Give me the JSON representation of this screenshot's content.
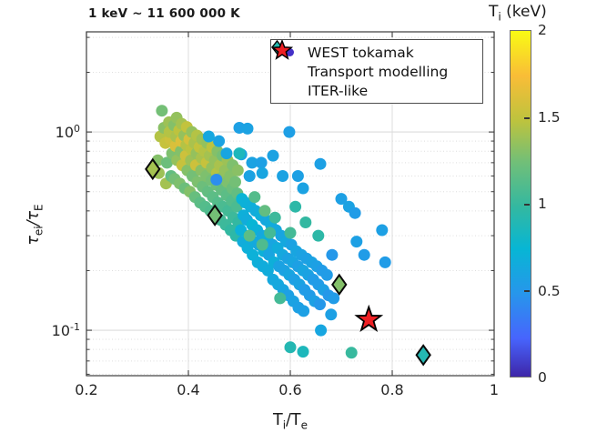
{
  "annotation": "1 keV ~ 11 600 000 K",
  "legend": {
    "items": [
      {
        "marker": "dot",
        "label": "WEST tokamak",
        "color": "#4430c8"
      },
      {
        "marker": "diamond",
        "label": "Transport modelling",
        "color": "#22b6ac"
      },
      {
        "marker": "star",
        "label": "ITER-like",
        "color": "#ee2024"
      }
    ]
  },
  "chart_data": {
    "type": "scatter",
    "xlabel": "T_i/T_e",
    "ylabel": "tau_ei/tau_E",
    "xlabel_parts": {
      "t1": "T",
      "s1": "i",
      "t2": "/T",
      "s2": "e"
    },
    "ylabel_parts": {
      "t1": "τ",
      "s1": "ei",
      "t2": "/τ",
      "s2": "E"
    },
    "xlim": [
      0.2,
      1.0
    ],
    "ylim": [
      0.059,
      3.2
    ],
    "yscale": "log",
    "grid": true,
    "xticks": [
      0.2,
      0.4,
      0.6,
      0.8,
      1
    ],
    "xtick_labels": [
      "0.2",
      "0.4",
      "0.6",
      "0.8",
      "1"
    ],
    "ytick_values": [
      1,
      0.1
    ],
    "ytick_labels": [
      {
        "base": "10",
        "exp": "0"
      },
      {
        "base": "10",
        "exp": "-1"
      }
    ],
    "colorbar": {
      "title_parts": {
        "pre": "T",
        "sub": "i",
        "post": " (keV)"
      },
      "min": 0,
      "max": 2,
      "ticks": [
        2,
        1.5,
        1,
        0.5,
        0
      ],
      "tick_labels": [
        "2",
        "1.5",
        "1",
        "0.5",
        "0"
      ],
      "stops": [
        [
          0,
          "#3e26a8"
        ],
        [
          0.11,
          "#4764fd"
        ],
        [
          0.24,
          "#2796eb"
        ],
        [
          0.37,
          "#07b6d4"
        ],
        [
          0.49,
          "#33b8a1"
        ],
        [
          0.62,
          "#71bf78"
        ],
        [
          0.74,
          "#bdc33e"
        ],
        [
          0.87,
          "#f9bd37"
        ],
        [
          1,
          "#f9fb14"
        ]
      ]
    },
    "series": [
      {
        "name": "WEST tokamak",
        "marker": "dot",
        "value_key": "Ti_keV",
        "points": [
          [
            0.34,
            0.72,
            1.3
          ],
          [
            0.345,
            0.95,
            1.45
          ],
          [
            0.348,
            1.28,
            1.25
          ],
          [
            0.342,
            0.62,
            1.38
          ],
          [
            0.355,
            0.88,
            1.52
          ],
          [
            0.352,
            1.05,
            1.32
          ],
          [
            0.358,
            0.7,
            1.22
          ],
          [
            0.356,
            0.55,
            1.4
          ],
          [
            0.362,
            1.12,
            1.38
          ],
          [
            0.365,
            0.92,
            1.55
          ],
          [
            0.368,
            0.78,
            1.28
          ],
          [
            0.366,
            0.6,
            1.18
          ],
          [
            0.363,
            1.0,
            1.45
          ],
          [
            0.372,
            1.08,
            1.3
          ],
          [
            0.375,
            0.85,
            1.6
          ],
          [
            0.378,
            0.72,
            1.35
          ],
          [
            0.376,
            0.95,
            1.42
          ],
          [
            0.373,
            0.58,
            1.25
          ],
          [
            0.377,
            1.18,
            1.35
          ],
          [
            0.382,
            1.02,
            1.48
          ],
          [
            0.385,
            0.8,
            1.3
          ],
          [
            0.388,
            0.68,
            1.52
          ],
          [
            0.386,
            0.9,
            1.62
          ],
          [
            0.383,
            0.55,
            1.28
          ],
          [
            0.387,
            1.1,
            1.4
          ],
          [
            0.392,
            0.96,
            1.35
          ],
          [
            0.395,
            0.76,
            1.55
          ],
          [
            0.398,
            0.64,
            1.3
          ],
          [
            0.396,
            0.86,
            1.45
          ],
          [
            0.393,
            0.52,
            1.22
          ],
          [
            0.397,
            1.06,
            1.5
          ],
          [
            0.402,
            0.92,
            1.58
          ],
          [
            0.405,
            0.72,
            1.38
          ],
          [
            0.408,
            0.6,
            1.25
          ],
          [
            0.406,
            0.82,
            1.48
          ],
          [
            0.403,
            0.5,
            1.3
          ],
          [
            0.407,
            1.0,
            1.35
          ],
          [
            0.412,
            0.88,
            1.42
          ],
          [
            0.415,
            0.68,
            1.55
          ],
          [
            0.418,
            0.56,
            1.28
          ],
          [
            0.416,
            0.78,
            1.35
          ],
          [
            0.413,
            0.47,
            1.2
          ],
          [
            0.417,
            0.96,
            1.45
          ],
          [
            0.422,
            0.84,
            1.5
          ],
          [
            0.425,
            0.64,
            1.32
          ],
          [
            0.428,
            0.53,
            1.22
          ],
          [
            0.426,
            0.74,
            1.42
          ],
          [
            0.423,
            0.44,
            1.15
          ],
          [
            0.427,
            0.92,
            1.38
          ],
          [
            0.432,
            0.8,
            1.45
          ],
          [
            0.435,
            0.6,
            1.28
          ],
          [
            0.438,
            0.5,
            1.18
          ],
          [
            0.436,
            0.7,
            1.52
          ],
          [
            0.433,
            0.42,
            1.12
          ],
          [
            0.437,
            0.88,
            1.35
          ],
          [
            0.442,
            0.76,
            1.4
          ],
          [
            0.445,
            0.57,
            1.25
          ],
          [
            0.448,
            0.47,
            1.15
          ],
          [
            0.446,
            0.66,
            1.35
          ],
          [
            0.443,
            0.4,
            1.1
          ],
          [
            0.447,
            0.84,
            1.48
          ],
          [
            0.452,
            0.72,
            1.35
          ],
          [
            0.455,
            0.54,
            1.22
          ],
          [
            0.458,
            0.44,
            1.12
          ],
          [
            0.456,
            0.62,
            1.45
          ],
          [
            0.453,
            0.38,
            1.08
          ],
          [
            0.457,
            0.8,
            1.3
          ],
          [
            0.462,
            0.68,
            1.42
          ],
          [
            0.465,
            0.51,
            1.18
          ],
          [
            0.468,
            0.42,
            1.08
          ],
          [
            0.466,
            0.59,
            1.32
          ],
          [
            0.463,
            0.36,
            1.05
          ],
          [
            0.467,
            0.76,
            1.25
          ],
          [
            0.472,
            0.64,
            1.35
          ],
          [
            0.475,
            0.48,
            1.15
          ],
          [
            0.478,
            0.4,
            1.05
          ],
          [
            0.476,
            0.56,
            1.28
          ],
          [
            0.473,
            0.34,
            1.02
          ],
          [
            0.477,
            0.72,
            1.38
          ],
          [
            0.482,
            0.6,
            1.3
          ],
          [
            0.485,
            0.45,
            1.12
          ],
          [
            0.488,
            0.37,
            1.02
          ],
          [
            0.486,
            0.52,
            1.22
          ],
          [
            0.483,
            0.32,
            0.98
          ],
          [
            0.487,
            0.68,
            1.28
          ],
          [
            0.492,
            0.56,
            1.25
          ],
          [
            0.495,
            0.42,
            1.08
          ],
          [
            0.498,
            0.35,
            0.98
          ],
          [
            0.496,
            0.49,
            1.18
          ],
          [
            0.493,
            0.3,
            0.95
          ],
          [
            0.497,
            0.64,
            1.32
          ],
          [
            0.455,
            0.575,
            0.44
          ],
          [
            0.46,
            0.9,
            0.58
          ],
          [
            0.5,
            1.05,
            0.56
          ],
          [
            0.516,
            1.04,
            0.58
          ],
          [
            0.598,
            1.0,
            0.55
          ],
          [
            0.475,
            0.78,
            0.6
          ],
          [
            0.44,
            0.95,
            0.62
          ],
          [
            0.504,
            0.77,
            0.6
          ],
          [
            0.5,
            0.78,
            0.86
          ],
          [
            0.525,
            0.7,
            0.58
          ],
          [
            0.543,
            0.7,
            0.56
          ],
          [
            0.566,
            0.76,
            0.58
          ],
          [
            0.659,
            0.69,
            0.56
          ],
          [
            0.52,
            0.6,
            0.58
          ],
          [
            0.545,
            0.62,
            0.6
          ],
          [
            0.585,
            0.6,
            0.58
          ],
          [
            0.615,
            0.6,
            0.56
          ],
          [
            0.625,
            0.52,
            0.58
          ],
          [
            0.505,
            0.46,
            0.73
          ],
          [
            0.508,
            0.38,
            0.68
          ],
          [
            0.503,
            0.32,
            0.7
          ],
          [
            0.507,
            0.28,
            0.66
          ],
          [
            0.512,
            0.44,
            0.7
          ],
          [
            0.515,
            0.36,
            0.66
          ],
          [
            0.518,
            0.3,
            0.73
          ],
          [
            0.516,
            0.26,
            0.68
          ],
          [
            0.522,
            0.42,
            0.68
          ],
          [
            0.525,
            0.34,
            0.73
          ],
          [
            0.528,
            0.28,
            0.66
          ],
          [
            0.526,
            0.24,
            0.7
          ],
          [
            0.532,
            0.4,
            0.66
          ],
          [
            0.535,
            0.32,
            0.7
          ],
          [
            0.538,
            0.27,
            0.63
          ],
          [
            0.536,
            0.22,
            0.68
          ],
          [
            0.542,
            0.38,
            0.68
          ],
          [
            0.545,
            0.3,
            0.63
          ],
          [
            0.548,
            0.25,
            0.7
          ],
          [
            0.546,
            0.21,
            0.66
          ],
          [
            0.552,
            0.36,
            0.63
          ],
          [
            0.555,
            0.29,
            0.68
          ],
          [
            0.558,
            0.24,
            0.6
          ],
          [
            0.556,
            0.2,
            0.66
          ],
          [
            0.562,
            0.34,
            0.66
          ],
          [
            0.565,
            0.27,
            0.6
          ],
          [
            0.568,
            0.22,
            0.68
          ],
          [
            0.566,
            0.18,
            0.63
          ],
          [
            0.572,
            0.32,
            0.63
          ],
          [
            0.575,
            0.26,
            0.66
          ],
          [
            0.578,
            0.21,
            0.58
          ],
          [
            0.576,
            0.17,
            0.63
          ],
          [
            0.582,
            0.3,
            0.6
          ],
          [
            0.585,
            0.24,
            0.63
          ],
          [
            0.588,
            0.2,
            0.58
          ],
          [
            0.586,
            0.16,
            0.6
          ],
          [
            0.592,
            0.28,
            0.63
          ],
          [
            0.595,
            0.23,
            0.58
          ],
          [
            0.598,
            0.19,
            0.6
          ],
          [
            0.596,
            0.15,
            0.56
          ],
          [
            0.602,
            0.27,
            0.58
          ],
          [
            0.605,
            0.22,
            0.6
          ],
          [
            0.608,
            0.18,
            0.56
          ],
          [
            0.606,
            0.14,
            0.58
          ],
          [
            0.612,
            0.25,
            0.6
          ],
          [
            0.615,
            0.21,
            0.56
          ],
          [
            0.618,
            0.17,
            0.58
          ],
          [
            0.616,
            0.13,
            0.56
          ],
          [
            0.622,
            0.24,
            0.58
          ],
          [
            0.625,
            0.2,
            0.6
          ],
          [
            0.628,
            0.16,
            0.53
          ],
          [
            0.626,
            0.125,
            0.56
          ],
          [
            0.632,
            0.23,
            0.56
          ],
          [
            0.635,
            0.19,
            0.58
          ],
          [
            0.638,
            0.15,
            0.53
          ],
          [
            0.642,
            0.22,
            0.58
          ],
          [
            0.645,
            0.18,
            0.53
          ],
          [
            0.648,
            0.14,
            0.56
          ],
          [
            0.652,
            0.21,
            0.56
          ],
          [
            0.655,
            0.17,
            0.53
          ],
          [
            0.658,
            0.135,
            0.5
          ],
          [
            0.662,
            0.2,
            0.53
          ],
          [
            0.665,
            0.16,
            0.56
          ],
          [
            0.672,
            0.19,
            0.53
          ],
          [
            0.675,
            0.15,
            0.5
          ],
          [
            0.682,
            0.24,
            0.5
          ],
          [
            0.685,
            0.145,
            0.53
          ],
          [
            0.52,
            0.3,
            1.15
          ],
          [
            0.545,
            0.27,
            1.1
          ],
          [
            0.56,
            0.31,
            1.05
          ],
          [
            0.58,
            0.145,
            1.05
          ],
          [
            0.55,
            0.4,
            1.18
          ],
          [
            0.53,
            0.47,
            1.12
          ],
          [
            0.57,
            0.37,
            1.02
          ],
          [
            0.6,
            0.31,
            1.05
          ],
          [
            0.61,
            0.42,
            0.95
          ],
          [
            0.63,
            0.35,
            0.98
          ],
          [
            0.655,
            0.3,
            0.95
          ],
          [
            0.6,
            0.082,
            0.9
          ],
          [
            0.625,
            0.078,
            0.86
          ],
          [
            0.72,
            0.077,
            1.0
          ],
          [
            0.66,
            0.1,
            0.61
          ],
          [
            0.68,
            0.12,
            0.56
          ],
          [
            0.7,
            0.46,
            0.56
          ],
          [
            0.715,
            0.42,
            0.58
          ],
          [
            0.727,
            0.39,
            0.53
          ],
          [
            0.78,
            0.32,
            0.56
          ],
          [
            0.786,
            0.22,
            0.53
          ],
          [
            0.73,
            0.28,
            0.56
          ],
          [
            0.745,
            0.24,
            0.53
          ]
        ]
      },
      {
        "name": "Transport modelling",
        "marker": "diamond",
        "value_key": "Ti_keV",
        "points": [
          [
            0.33,
            0.65,
            1.4
          ],
          [
            0.452,
            0.38,
            1.25
          ],
          [
            0.696,
            0.17,
            1.3
          ],
          [
            0.861,
            0.075,
            0.9
          ]
        ]
      },
      {
        "name": "ITER-like",
        "marker": "star",
        "points": [
          [
            0.754,
            0.113
          ]
        ]
      }
    ]
  }
}
